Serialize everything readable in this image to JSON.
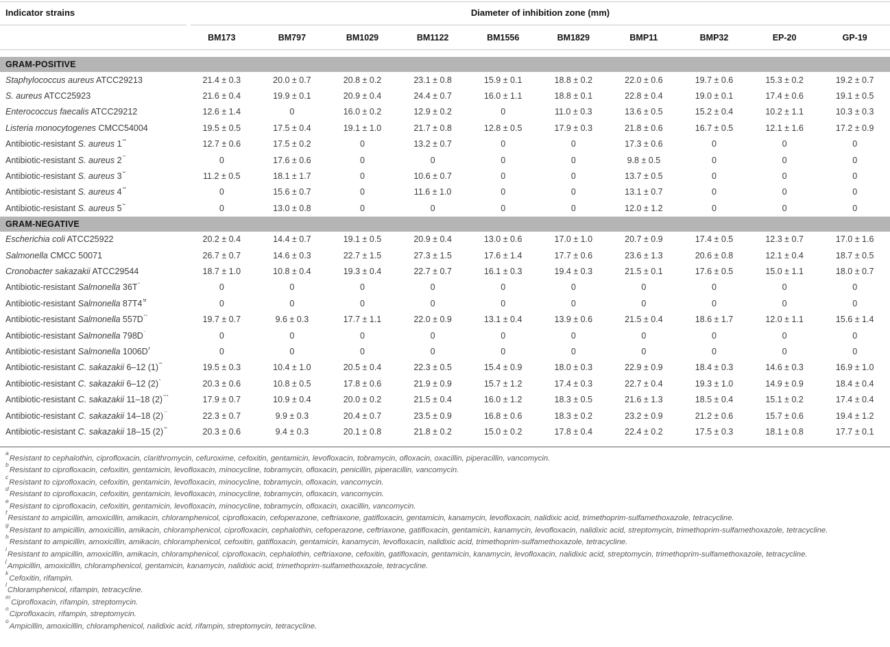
{
  "header": {
    "row_header": "Indicator strains",
    "col_group_header": "Diameter of inhibition zone (mm)"
  },
  "colors": {
    "section_band": "#b5b5b5",
    "rule": "#c9c9c9",
    "footnote_separator": "#adadad",
    "body_text": "#3a3a3a",
    "heading_text": "#111111",
    "footnote_text": "#565656"
  },
  "table": {
    "columns": [
      "BM173",
      "BM797",
      "BM1029",
      "BM1122",
      "BM1556",
      "BM1829",
      "BMP11",
      "BMP32",
      "EP-20",
      "GP-19"
    ],
    "sections": [
      {
        "id": "gram-positive",
        "label": "GRAM-POSITIVE",
        "rows": [
          {
            "prefix": "",
            "italic": "Staphylococcus aureus",
            "suffix": " ATCC29213",
            "sup": "",
            "values": [
              "21.4 ± 0.3",
              "20.0 ± 0.7",
              "20.8 ± 0.2",
              "23.1 ± 0.8",
              "15.9 ± 0.1",
              "18.8 ± 0.2",
              "22.0 ± 0.6",
              "19.7 ± 0.6",
              "15.3 ± 0.2",
              "19.2 ± 0.7"
            ]
          },
          {
            "prefix": "",
            "italic": "S. aureus",
            "suffix": " ATCC25923",
            "sup": "",
            "values": [
              "21.6 ± 0.4",
              "19.9 ± 0.1",
              "20.9 ± 0.4",
              "24.4 ± 0.7",
              "16.0 ± 1.1",
              "18.8 ± 0.1",
              "22.8 ± 0.4",
              "19.0 ± 0.1",
              "17.4 ± 0.6",
              "19.1 ± 0.5"
            ]
          },
          {
            "prefix": "",
            "italic": "Enterococcus faecalis",
            "suffix": " ATCC29212",
            "sup": "",
            "values": [
              "12.6 ± 1.4",
              "0",
              "16.0 ± 0.2",
              "12.9 ± 0.2",
              "0",
              "11.0 ± 0.3",
              "13.6 ± 0.5",
              "15.2 ± 0.4",
              "10.2 ± 1.1",
              "10.3 ± 0.3"
            ]
          },
          {
            "prefix": "",
            "italic": "Listeria monocytogenes",
            "suffix": " CMCC54004",
            "sup": "",
            "values": [
              "19.5 ± 0.5",
              "17.5 ± 0.4",
              "19.1 ± 1.0",
              "21.7 ± 0.8",
              "12.8 ± 0.5",
              "17.9 ± 0.3",
              "21.8 ± 0.6",
              "16.7 ± 0.5",
              "12.1 ± 1.6",
              "17.2 ± 0.9"
            ]
          },
          {
            "prefix": "Antibiotic-resistant ",
            "italic": "S. aureus",
            "suffix": " 1",
            "sup": "a",
            "values": [
              "12.7 ± 0.6",
              "17.5 ± 0.2",
              "0",
              "13.2 ± 0.7",
              "0",
              "0",
              "17.3 ± 0.6",
              "0",
              "0",
              "0"
            ]
          },
          {
            "prefix": "Antibiotic-resistant ",
            "italic": "S. aureus",
            "suffix": " 2",
            "sup": "b",
            "values": [
              "0",
              "17.6 ± 0.6",
              "0",
              "0",
              "0",
              "0",
              "9.8 ± 0.5",
              "0",
              "0",
              "0"
            ]
          },
          {
            "prefix": "Antibiotic-resistant ",
            "italic": "S. aureus",
            "suffix": " 3",
            "sup": "c",
            "values": [
              "11.2 ± 0.5",
              "18.1 ± 1.7",
              "0",
              "10.6 ± 0.7",
              "0",
              "0",
              "13.7 ± 0.5",
              "0",
              "0",
              "0"
            ]
          },
          {
            "prefix": "Antibiotic-resistant ",
            "italic": "S. aureus",
            "suffix": " 4",
            "sup": "d",
            "values": [
              "0",
              "15.6 ± 0.7",
              "0",
              "11.6 ± 1.0",
              "0",
              "0",
              "13.1 ± 0.7",
              "0",
              "0",
              "0"
            ]
          },
          {
            "prefix": "Antibiotic-resistant ",
            "italic": "S. aureus",
            "suffix": " 5",
            "sup": "e",
            "values": [
              "0",
              "13.0 ± 0.8",
              "0",
              "0",
              "0",
              "0",
              "12.0 ± 1.2",
              "0",
              "0",
              "0"
            ]
          }
        ]
      },
      {
        "id": "gram-negative",
        "label": "GRAM-NEGATIVE",
        "rows": [
          {
            "prefix": "",
            "italic": "Escherichia coli",
            "suffix": " ATCC25922",
            "sup": "",
            "values": [
              "20.2 ± 0.4",
              "14.4 ± 0.7",
              "19.1 ± 0.5",
              "20.9 ± 0.4",
              "13.0 ± 0.6",
              "17.0 ± 1.0",
              "20.7 ± 0.9",
              "17.4 ± 0.5",
              "12.3 ± 0.7",
              "17.0 ± 1.6"
            ]
          },
          {
            "prefix": "",
            "italic": "Salmonella",
            "suffix": " CMCC 50071",
            "sup": "",
            "values": [
              "26.7 ± 0.7",
              "14.6 ± 0.3",
              "22.7 ± 1.5",
              "27.3 ± 1.5",
              "17.6 ± 1.4",
              "17.7 ± 0.6",
              "23.6 ± 1.3",
              "20.6 ± 0.8",
              "12.1 ± 0.4",
              "18.7 ± 0.5"
            ]
          },
          {
            "prefix": "",
            "italic": "Cronobacter sakazakii",
            "suffix": " ATCC29544",
            "sup": "",
            "values": [
              "18.7 ± 1.0",
              "10.8 ± 0.4",
              "19.3 ± 0.4",
              "22.7 ± 0.7",
              "16.1 ± 0.3",
              "19.4 ± 0.3",
              "21.5 ± 0.1",
              "17.6 ± 0.5",
              "15.0 ± 1.1",
              "18.0 ± 0.7"
            ]
          },
          {
            "prefix": "Antibiotic-resistant ",
            "italic": "Salmonella",
            "suffix": " 36T",
            "sup": "f",
            "values": [
              "0",
              "0",
              "0",
              "0",
              "0",
              "0",
              "0",
              "0",
              "0",
              "0"
            ]
          },
          {
            "prefix": "Antibiotic-resistant ",
            "italic": "Salmonella",
            "suffix": " 87T4",
            "sup": "g",
            "values": [
              "0",
              "0",
              "0",
              "0",
              "0",
              "0",
              "0",
              "0",
              "0",
              "0"
            ]
          },
          {
            "prefix": "Antibiotic-resistant ",
            "italic": "Salmonella",
            "suffix": " 557D",
            "sup": "h",
            "values": [
              "19.7 ± 0.7",
              "9.6 ± 0.3",
              "17.7 ± 1.1",
              "22.0 ± 0.9",
              "13.1 ± 0.4",
              "13.9 ± 0.6",
              "21.5 ± 0.4",
              "18.6 ± 1.7",
              "12.0 ± 1.1",
              "15.6 ± 1.4"
            ]
          },
          {
            "prefix": "Antibiotic-resistant ",
            "italic": "Salmonella",
            "suffix": " 798D",
            "sup": "i",
            "values": [
              "0",
              "0",
              "0",
              "0",
              "0",
              "0",
              "0",
              "0",
              "0",
              "0"
            ]
          },
          {
            "prefix": "Antibiotic-resistant ",
            "italic": "Salmonella",
            "suffix": " 1006D",
            "sup": "j",
            "values": [
              "0",
              "0",
              "0",
              "0",
              "0",
              "0",
              "0",
              "0",
              "0",
              "0"
            ]
          },
          {
            "prefix": "Antibiotic-resistant ",
            "italic": "C. sakazakii",
            "suffix": " 6–12 (1)",
            "sup": "k",
            "values": [
              "19.5 ± 0.3",
              "10.4 ± 1.0",
              "20.5 ± 0.4",
              "22.3 ± 0.5",
              "15.4 ± 0.9",
              "18.0 ± 0.3",
              "22.9 ± 0.9",
              "18.4 ± 0.3",
              "14.6 ± 0.3",
              "16.9 ± 1.0"
            ]
          },
          {
            "prefix": "Antibiotic-resistant ",
            "italic": "C. sakazakii",
            "suffix": " 6–12 (2)",
            "sup": "l",
            "values": [
              "20.3 ± 0.6",
              "10.8 ± 0.5",
              "17.8 ± 0.6",
              "21.9 ± 0.9",
              "15.7 ± 1.2",
              "17.4 ± 0.3",
              "22.7 ± 0.4",
              "19.3 ± 1.0",
              "14.9 ± 0.9",
              "18.4 ± 0.4"
            ]
          },
          {
            "prefix": "Antibiotic-resistant ",
            "italic": "C. sakazakii",
            "suffix": " 11–18 (2)",
            "sup": "m",
            "values": [
              "17.9 ± 0.7",
              "10.9 ± 0.4",
              "20.0 ± 0.2",
              "21.5 ± 0.4",
              "16.0 ± 1.2",
              "18.3 ± 0.5",
              "21.6 ± 1.3",
              "18.5 ± 0.4",
              "15.1 ± 0.2",
              "17.4 ± 0.4"
            ]
          },
          {
            "prefix": "Antibiotic-resistant ",
            "italic": "C. sakazakii",
            "suffix": " 14–18 (2)",
            "sup": "n",
            "values": [
              "22.3 ± 0.7",
              "9.9 ± 0.3",
              "20.4 ± 0.7",
              "23.5 ± 0.9",
              "16.8 ± 0.6",
              "18.3 ± 0.2",
              "23.2 ± 0.9",
              "21.2 ± 0.6",
              "15.7 ± 0.6",
              "19.4 ± 1.2"
            ]
          },
          {
            "prefix": "Antibiotic-resistant ",
            "italic": "C. sakazakii",
            "suffix": " 18–15 (2)",
            "sup": "o",
            "values": [
              "20.3 ± 0.6",
              "9.4 ± 0.3",
              "20.1 ± 0.8",
              "21.8 ± 0.2",
              "15.0 ± 0.2",
              "17.8 ± 0.4",
              "22.4 ± 0.2",
              "17.5 ± 0.3",
              "18.1 ± 0.8",
              "17.7 ± 0.1"
            ]
          }
        ]
      }
    ]
  },
  "footnotes": [
    {
      "sup": "a",
      "text": "Resistant to cephalothin, ciprofloxacin, clarithromycin, cefuroxime, cefoxitin, gentamicin, levofloxacin, tobramycin, ofloxacin, oxacillin, piperacillin, vancomycin."
    },
    {
      "sup": "b",
      "text": "Resistant to ciprofloxacin, cefoxitin, gentamicin, levofloxacin, minocycline, tobramycin, ofloxacin, penicillin, piperacillin, vancomycin."
    },
    {
      "sup": "c",
      "text": "Resistant to ciprofloxacin, cefoxitin, gentamicin, levofloxacin, minocycline, tobramycin, ofloxacin, vancomycin."
    },
    {
      "sup": "d",
      "text": "Resistant to ciprofloxacin, cefoxitin, gentamicin, levofloxacin, minocycline, tobramycin, ofloxacin, vancomycin."
    },
    {
      "sup": "e",
      "text": "Resistant to ciprofloxacin, cefoxitin, gentamicin, levofloxacin, minocycline, tobramycin, ofloxacin, oxacillin, vancomycin."
    },
    {
      "sup": "f",
      "text": "Resistant to ampicillin, amoxicillin, amikacin, chloramphenicol, ciprofloxacin, cefoperazone, ceftriaxone, gatifloxacin, gentamicin, kanamycin, levofloxacin, nalidixic acid, trimethoprim-sulfamethoxazole, tetracycline."
    },
    {
      "sup": "g",
      "text": "Resistant to ampicillin, amoxicillin, amikacin, chloramphenicol, ciprofloxacin, cephalothin, cefoperazone, ceftriaxone, gatifloxacin, gentamicin, kanamycin, levofloxacin, nalidixic acid, streptomycin, trimethoprim-sulfamethoxazole, tetracycline."
    },
    {
      "sup": "h",
      "text": "Resistant to ampicillin, amoxicillin, amikacin, chloramphenicol, cefoxitin, gatifloxacin, gentamicin, kanamycin, levofloxacin, nalidixic acid, trimethoprim-sulfamethoxazole, tetracycline."
    },
    {
      "sup": "i",
      "text": "Resistant to ampicillin, amoxicillin, amikacin, chloramphenicol, ciprofloxacin, cephalothin, ceftriaxone, cefoxitin, gatifloxacin, gentamicin, kanamycin, levofloxacin, nalidixic acid, streptomycin, trimethoprim-sulfamethoxazole, tetracycline."
    },
    {
      "sup": "j",
      "text": "Ampicillin, amoxicillin, chloramphenicol, gentamicin, kanamycin, nalidixic acid, trimethoprim-sulfamethoxazole, tetracycline."
    },
    {
      "sup": "k",
      "text": "Cefoxitin, rifampin."
    },
    {
      "sup": "l",
      "text": "Chloramphenicol, rifampin, tetracycline."
    },
    {
      "sup": "m",
      "text": "Ciprofloxacin, rifampin, streptomycin."
    },
    {
      "sup": "n",
      "text": "Ciprofloxacin, rifampin, streptomycin."
    },
    {
      "sup": "o",
      "text": "Ampicillin, amoxicillin, chloramphenicol, nalidixic acid, rifampin, streptomycin, tetracycline."
    }
  ]
}
